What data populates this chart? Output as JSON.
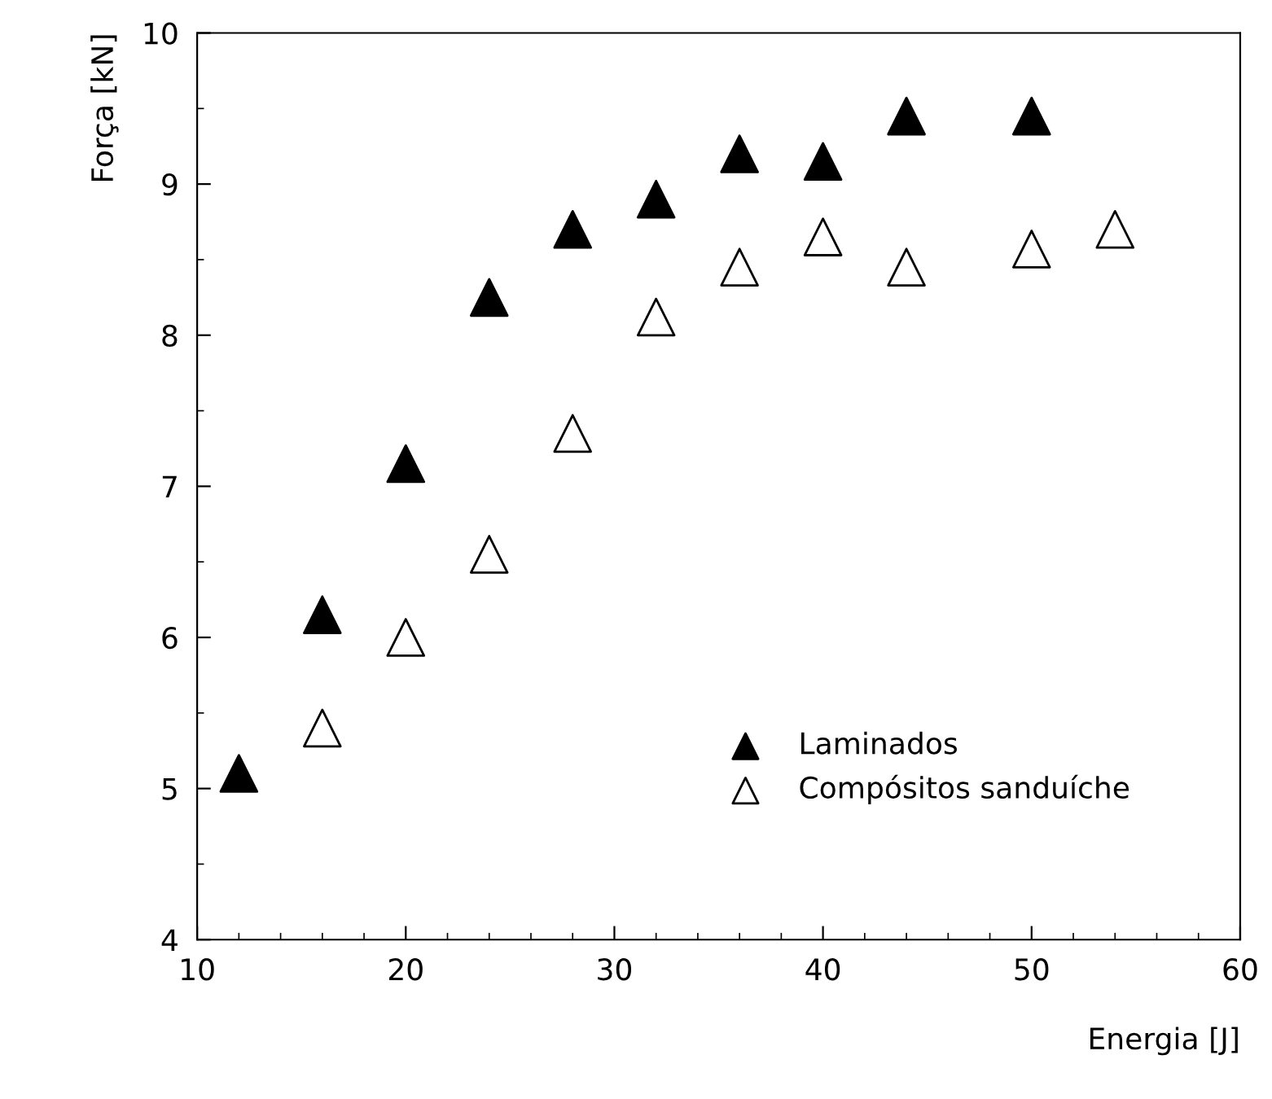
{
  "chart_data": {
    "type": "scatter",
    "xlabel": "Energia [J]",
    "ylabel": "Força [kN]",
    "xlim": [
      10,
      60
    ],
    "xticks": [
      10,
      20,
      30,
      40,
      50,
      60
    ],
    "ylim": [
      4,
      10
    ],
    "yticks": [
      4,
      5,
      6,
      7,
      8,
      9,
      10
    ],
    "grid": false,
    "legend": "bottom right",
    "marker": "triangle",
    "series": [
      {
        "name": "Laminados",
        "color": "#000000",
        "x": [
          12,
          16,
          20,
          24,
          28,
          32,
          36,
          40,
          44,
          50
        ],
        "values": [
          5.1,
          6.15,
          7.15,
          8.25,
          8.7,
          8.9,
          9.2,
          9.15,
          9.45,
          9.45
        ]
      },
      {
        "name": "Compósitos sanduíche",
        "color": "#ffffff",
        "x": [
          16,
          20,
          24,
          28,
          32,
          36,
          40,
          44,
          50,
          54
        ],
        "values": [
          5.4,
          6.0,
          6.55,
          7.35,
          8.12,
          8.45,
          8.65,
          8.45,
          8.57,
          8.7
        ]
      }
    ]
  }
}
